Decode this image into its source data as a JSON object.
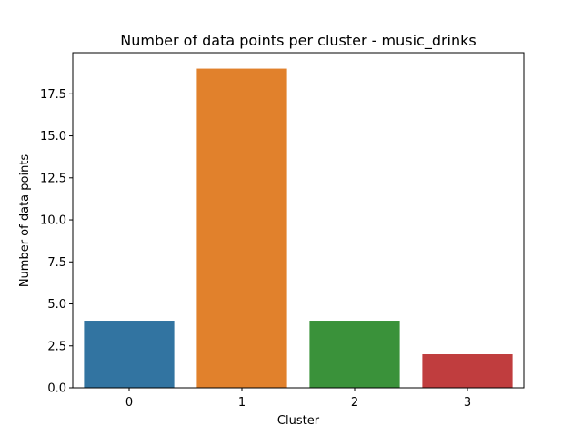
{
  "chart_data": {
    "type": "bar",
    "title": "Number of data points per cluster - music_drinks",
    "xlabel": "Cluster",
    "ylabel": "Number of data points",
    "categories": [
      "0",
      "1",
      "2",
      "3"
    ],
    "values": [
      4,
      19,
      4,
      2
    ],
    "colors": [
      "#3274a1",
      "#e1812c",
      "#3a923a",
      "#c03d3e"
    ],
    "ylim": [
      0,
      19.95
    ],
    "yticks": [
      0.0,
      2.5,
      5.0,
      7.5,
      10.0,
      12.5,
      15.0,
      17.5
    ],
    "ytick_labels": [
      "0.0",
      "2.5",
      "5.0",
      "7.5",
      "10.0",
      "12.5",
      "15.0",
      "17.5"
    ],
    "grid": false,
    "legend": "none"
  }
}
